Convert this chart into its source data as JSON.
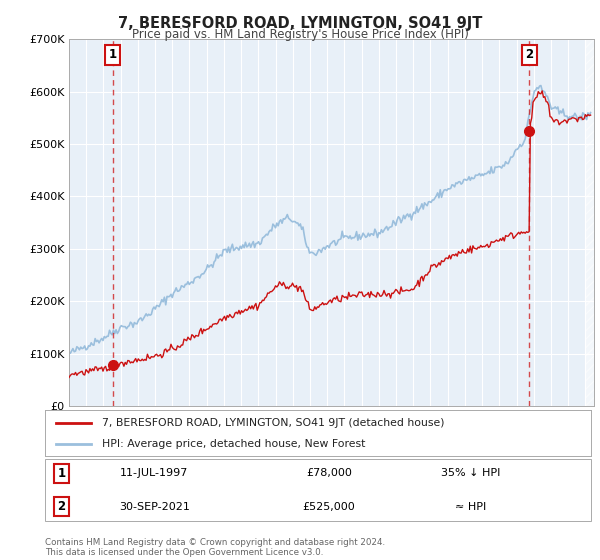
{
  "title": "7, BERESFORD ROAD, LYMINGTON, SO41 9JT",
  "subtitle": "Price paid vs. HM Land Registry's House Price Index (HPI)",
  "legend_label_red": "7, BERESFORD ROAD, LYMINGTON, SO41 9JT (detached house)",
  "legend_label_blue": "HPI: Average price, detached house, New Forest",
  "annotation1_date": "11-JUL-1997",
  "annotation1_price": "£78,000",
  "annotation1_hpi": "35% ↓ HPI",
  "annotation1_year": 1997.53,
  "annotation1_value": 78000,
  "annotation2_date": "30-SEP-2021",
  "annotation2_price": "£525,000",
  "annotation2_hpi": "≈ HPI",
  "annotation2_year": 2021.75,
  "annotation2_value": 525000,
  "hpi_color": "#9bbfdd",
  "price_color": "#cc1111",
  "dot_color": "#cc1111",
  "dashed_color": "#cc1111",
  "plot_bg": "#e8f0f8",
  "grid_color": "#ffffff",
  "fig_bg": "#ffffff",
  "ylim": [
    0,
    700000
  ],
  "yticks": [
    0,
    100000,
    200000,
    300000,
    400000,
    500000,
    600000,
    700000
  ],
  "ytick_labels": [
    "£0",
    "£100K",
    "£200K",
    "£300K",
    "£400K",
    "£500K",
    "£600K",
    "£700K"
  ],
  "xmin": 1995,
  "xmax": 2025.5,
  "footer": "Contains HM Land Registry data © Crown copyright and database right 2024.\nThis data is licensed under the Open Government Licence v3.0."
}
